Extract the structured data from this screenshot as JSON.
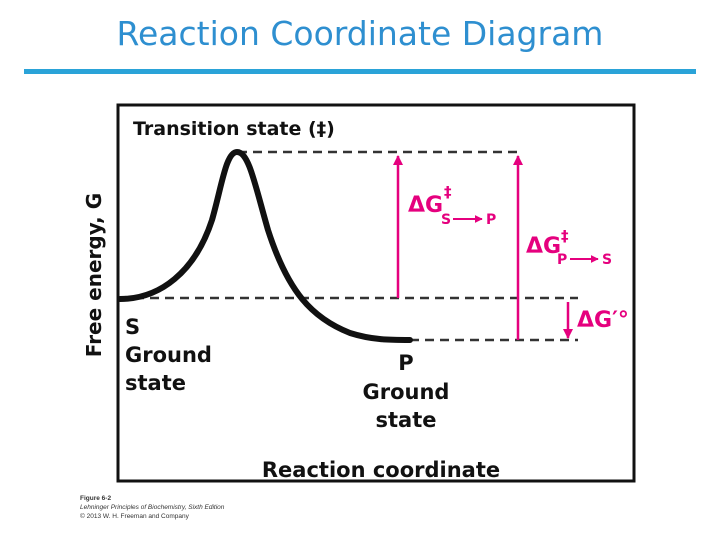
{
  "page": {
    "title": "Reaction Coordinate Diagram",
    "accent_color": "#2e8fd0",
    "rule_color": "#2aa3d8"
  },
  "diagram": {
    "y_axis_label": "Free energy, G",
    "x_axis_label": "Reaction coordinate",
    "transition_state_label": "Transition state (‡)",
    "substrate": {
      "letter": "S",
      "line1": "Ground",
      "line2": "state"
    },
    "product": {
      "letter": "P",
      "line1": "Ground",
      "line2": "state"
    },
    "delta_g_forward": {
      "symbol": "ΔG",
      "sup": "‡",
      "from": "S",
      "to": "P"
    },
    "delta_g_reverse": {
      "symbol": "ΔG",
      "sup": "‡",
      "from": "P",
      "to": "S"
    },
    "delta_g_standard": {
      "symbol": "ΔG′°"
    },
    "curve_color": "#111111",
    "arrow_color": "#e5007e"
  },
  "credit": {
    "figure": "Figure 6-2",
    "book": "Lehninger Principles of Biochemistry, Sixth Edition",
    "copyright": "© 2013 W. H. Freeman and Company"
  }
}
